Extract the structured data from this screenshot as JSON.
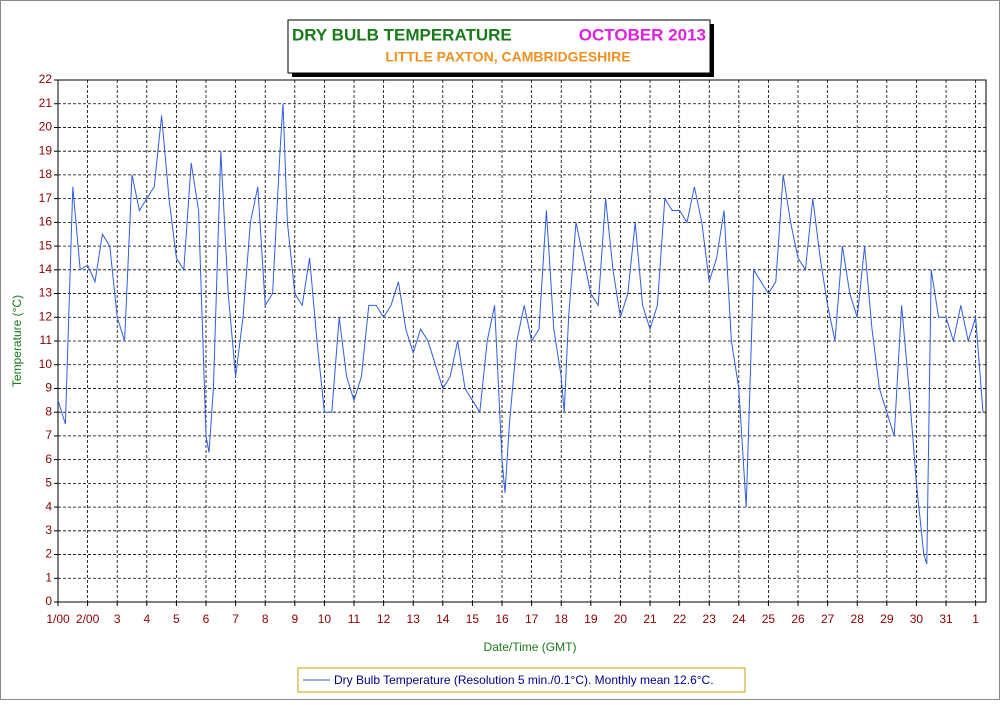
{
  "chart_data": {
    "type": "line",
    "title": "DRY BULB TEMPERATURE",
    "title_period": "OCTOBER 2013",
    "subtitle": "LITTLE PAXTON, CAMBRIDGESHIRE",
    "xlabel": "Date/Time (GMT)",
    "ylabel": "Temperature (°C)",
    "x": [
      0,
      0.25,
      0.5,
      0.75,
      1,
      1.25,
      1.5,
      1.75,
      2,
      2.25,
      2.5,
      2.75,
      3,
      3.25,
      3.5,
      3.75,
      4,
      4.25,
      4.5,
      4.75,
      5,
      5.1,
      5.25,
      5.5,
      5.75,
      6,
      6.25,
      6.5,
      6.75,
      7,
      7.25,
      7.5,
      7.6,
      7.75,
      8,
      8.25,
      8.5,
      8.75,
      9,
      9.25,
      9.5,
      9.75,
      10,
      10.25,
      10.5,
      10.75,
      11,
      11.25,
      11.5,
      11.75,
      12,
      12.25,
      12.5,
      12.75,
      13,
      13.25,
      13.5,
      13.75,
      14,
      14.25,
      14.5,
      14.75,
      15,
      15.1,
      15.25,
      15.5,
      15.75,
      16,
      16.25,
      16.5,
      16.75,
      17,
      17.1,
      17.25,
      17.5,
      17.75,
      18,
      18.25,
      18.5,
      18.75,
      19,
      19.25,
      19.5,
      19.75,
      20,
      20.25,
      20.5,
      20.75,
      21,
      21.25,
      21.5,
      21.75,
      22,
      22.25,
      22.5,
      22.75,
      23,
      23.25,
      23.5,
      23.75,
      24,
      24.25,
      24.5,
      24.75,
      25,
      25.25,
      25.5,
      25.75,
      26,
      26.25,
      26.5,
      26.75,
      27,
      27.25,
      27.5,
      27.75,
      28,
      28.25,
      28.5,
      28.75,
      29,
      29.25,
      29.35,
      29.5,
      29.75,
      30,
      30.25,
      30.5,
      30.75,
      31,
      31.25
    ],
    "series": [
      {
        "name": "Dry Bulb Temperature (Resolution 5 min./0.1°C). Monthly mean 12.6°C.",
        "color": "#2f5fe0",
        "values": [
          8.5,
          7.5,
          17.5,
          14,
          14.2,
          13.5,
          15.5,
          15,
          12,
          11,
          18,
          16.5,
          17,
          17.5,
          20.5,
          17,
          14.5,
          14,
          18.5,
          16.5,
          7,
          6.3,
          9,
          19,
          13,
          9.5,
          12,
          16,
          17.5,
          12.5,
          13,
          19,
          21,
          16,
          13,
          12.5,
          14.5,
          11,
          8,
          8,
          12,
          9.5,
          8.5,
          9.5,
          12.5,
          12.5,
          12,
          12.5,
          13.5,
          11.5,
          10.5,
          11.5,
          11,
          10,
          9,
          9.5,
          11,
          9,
          8.5,
          8,
          11,
          12.5,
          6,
          4.6,
          7.5,
          11,
          12.5,
          11,
          11.5,
          16.5,
          11.5,
          9.5,
          8,
          12,
          16,
          14.5,
          13,
          12.5,
          17,
          14,
          12,
          13,
          16,
          12.5,
          11.5,
          12.5,
          17,
          16.5,
          16.5,
          16,
          17.5,
          16,
          13.5,
          14.5,
          16.5,
          11,
          9,
          4,
          14,
          13.5,
          13,
          13.5,
          18,
          16,
          14.5,
          14,
          17,
          14.5,
          12.5,
          11,
          15,
          13,
          12,
          15,
          11.5,
          9,
          8,
          7,
          12.5,
          9,
          5,
          2,
          1.6,
          14,
          12,
          12,
          11,
          12.5,
          11,
          12,
          8
        ]
      }
    ],
    "xlim": [
      0,
      31.35
    ],
    "ylim": [
      0,
      22
    ],
    "xticks": [
      {
        "value": 0,
        "label": "1/00"
      },
      {
        "value": 1,
        "label": "2/00"
      },
      {
        "value": 2,
        "label": "3"
      },
      {
        "value": 3,
        "label": "4"
      },
      {
        "value": 4,
        "label": "5"
      },
      {
        "value": 5,
        "label": "6"
      },
      {
        "value": 6,
        "label": "7"
      },
      {
        "value": 7,
        "label": "8"
      },
      {
        "value": 8,
        "label": "9"
      },
      {
        "value": 9,
        "label": "10"
      },
      {
        "value": 10,
        "label": "11"
      },
      {
        "value": 11,
        "label": "12"
      },
      {
        "value": 12,
        "label": "13"
      },
      {
        "value": 13,
        "label": "14"
      },
      {
        "value": 14,
        "label": "15"
      },
      {
        "value": 15,
        "label": "16"
      },
      {
        "value": 16,
        "label": "17"
      },
      {
        "value": 17,
        "label": "18"
      },
      {
        "value": 18,
        "label": "19"
      },
      {
        "value": 19,
        "label": "20"
      },
      {
        "value": 20,
        "label": "21"
      },
      {
        "value": 21,
        "label": "22"
      },
      {
        "value": 22,
        "label": "23"
      },
      {
        "value": 23,
        "label": "24"
      },
      {
        "value": 24,
        "label": "25"
      },
      {
        "value": 25,
        "label": "26"
      },
      {
        "value": 26,
        "label": "27"
      },
      {
        "value": 27,
        "label": "28"
      },
      {
        "value": 28,
        "label": "29"
      },
      {
        "value": 29,
        "label": "30"
      },
      {
        "value": 30,
        "label": "31"
      },
      {
        "value": 31,
        "label": "1"
      }
    ],
    "yticks": [
      0,
      1,
      2,
      3,
      4,
      5,
      6,
      7,
      8,
      9,
      10,
      11,
      12,
      13,
      14,
      15,
      16,
      17,
      18,
      19,
      20,
      21,
      22
    ],
    "grid": true
  }
}
